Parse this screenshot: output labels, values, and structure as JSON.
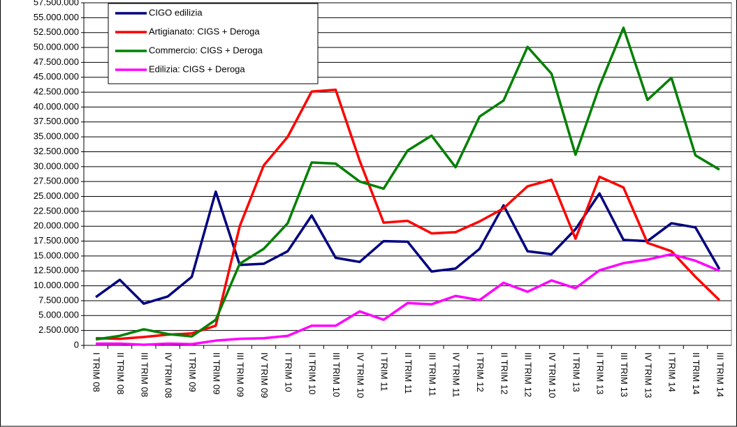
{
  "chart_data": {
    "type": "line",
    "categories": [
      "I TRIM 08",
      "II TRIM 08",
      "III TRIM 08",
      "IV TRIM 08",
      "I TRIM 09",
      "II TRIM 09",
      "III TRIM 09",
      "IV TRIM 09",
      "I TRIM 10",
      "II TRIM 10",
      "III TRIM 10",
      "IV TRIM 10",
      "I TRIM 11",
      "II TRIM 11",
      "III TRIM 11",
      "IV TRIM 11",
      "I TRIM 12",
      "II TRIM 12",
      "III TRIM 12",
      "IV TRIM 10",
      "I TRIM 13",
      "II TRIM 13",
      "III TRIM 13",
      "IV TRIM 13",
      "I TRIM 14",
      "II TRIM 14",
      "III TRIM 14"
    ],
    "series": [
      {
        "name": "CIGO edilizia",
        "color": "#000080",
        "values": [
          8100000,
          11000000,
          7000000,
          8200000,
          11500000,
          25800000,
          13500000,
          13700000,
          15800000,
          21800000,
          14700000,
          14000000,
          17500000,
          17400000,
          12400000,
          12900000,
          16200000,
          23500000,
          15800000,
          15300000,
          19500000,
          25500000,
          17700000,
          17500000,
          20500000,
          19800000,
          12800000
        ]
      },
      {
        "name": "Artigianato: CIGS + Deroga",
        "color": "#ff0000",
        "values": [
          1200000,
          1100000,
          1400000,
          1800000,
          2000000,
          3300000,
          20000000,
          30200000,
          35000000,
          42600000,
          42900000,
          31000000,
          20600000,
          20900000,
          18800000,
          19000000,
          20800000,
          23000000,
          26700000,
          27800000,
          17900000,
          28300000,
          26500000,
          17200000,
          15800000,
          11500000,
          7600000
        ]
      },
      {
        "name": "Commercio: CIGS + Deroga",
        "color": "#008000",
        "values": [
          1000000,
          1600000,
          2700000,
          1900000,
          1500000,
          4300000,
          13700000,
          16200000,
          20500000,
          30700000,
          30500000,
          27500000,
          26300000,
          32700000,
          35200000,
          29900000,
          38400000,
          41100000,
          50100000,
          45600000,
          32000000,
          43500000,
          53300000,
          41200000,
          44900000,
          31900000,
          29500000
        ]
      },
      {
        "name": "Edilizia: CIGS + Deroga",
        "color": "#ff00ff",
        "values": [
          300000,
          300000,
          100000,
          300000,
          200000,
          800000,
          1100000,
          1200000,
          1600000,
          3300000,
          3300000,
          5700000,
          4300000,
          7100000,
          6900000,
          8300000,
          7600000,
          10500000,
          9000000,
          10900000,
          9600000,
          12600000,
          13800000,
          14400000,
          15300000,
          14200000,
          12500000
        ]
      }
    ],
    "ylim": [
      0,
      57500000
    ],
    "yticks": [
      0,
      {
        "value": 2500000,
        "label": "2.500.000"
      },
      {
        "value": 5000000,
        "label": "5.000.000"
      },
      {
        "value": 7500000,
        "label": "7.500.000"
      },
      {
        "value": 10000000,
        "label": "10.000.000"
      },
      {
        "value": 12500000,
        "label": "12.500.000"
      },
      {
        "value": 15000000,
        "label": "15.000.000"
      },
      {
        "value": 17500000,
        "label": "17.500.000"
      },
      {
        "value": 20000000,
        "label": "20.000.000"
      },
      {
        "value": 22500000,
        "label": "22.500.000"
      },
      {
        "value": 25000000,
        "label": "25.000.000"
      },
      {
        "value": 27500000,
        "label": "27.500.000"
      },
      {
        "value": 30000000,
        "label": "30.000.000"
      },
      {
        "value": 32500000,
        "label": "32.500.000"
      },
      {
        "value": 35000000,
        "label": "35.000.000"
      },
      {
        "value": 37500000,
        "label": "37.500.000"
      },
      {
        "value": 40000000,
        "label": "40.000.000"
      },
      {
        "value": 42500000,
        "label": "42.500.000"
      },
      {
        "value": 45000000,
        "label": "45.000.000"
      },
      {
        "value": 47500000,
        "label": "47.500.000"
      },
      {
        "value": 50000000,
        "label": "50.000.000"
      },
      {
        "value": 52500000,
        "label": "52.500.000"
      },
      {
        "value": 55000000,
        "label": "55.000.000"
      },
      {
        "value": 57500000,
        "label": "57.500.000"
      }
    ],
    "grid": true,
    "legend": "upper-left"
  }
}
